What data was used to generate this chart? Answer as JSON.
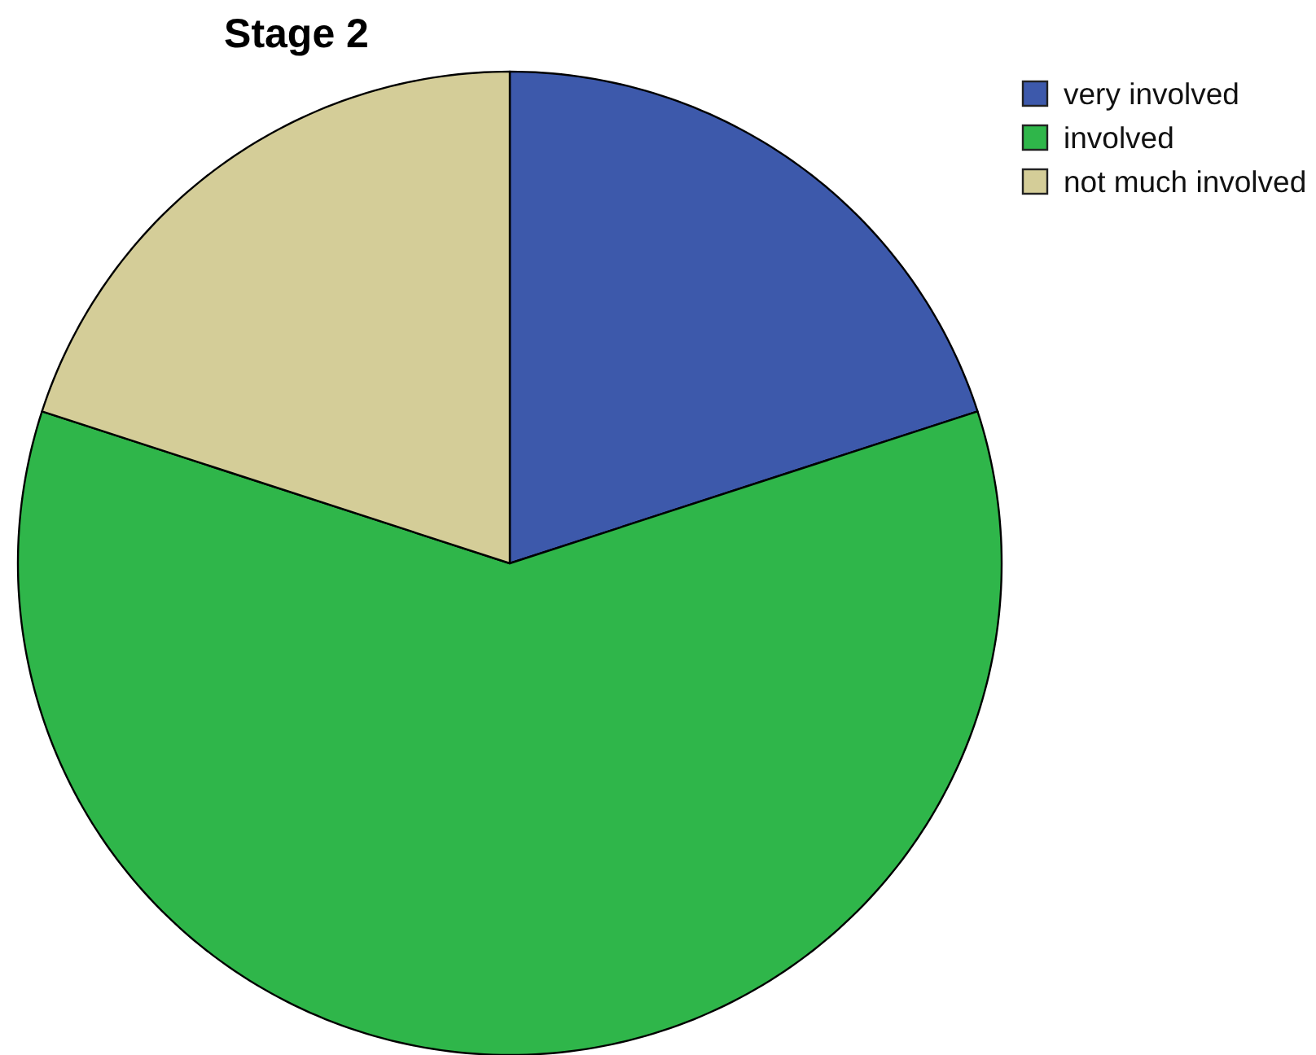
{
  "chart_data": {
    "type": "pie",
    "title": "Stage 2",
    "categories": [
      "very involved",
      "involved",
      "not much involved"
    ],
    "values": [
      20,
      60,
      20
    ],
    "colors": [
      "#3d59ab",
      "#2fb64a",
      "#d4cd98"
    ],
    "legend": "top right"
  }
}
